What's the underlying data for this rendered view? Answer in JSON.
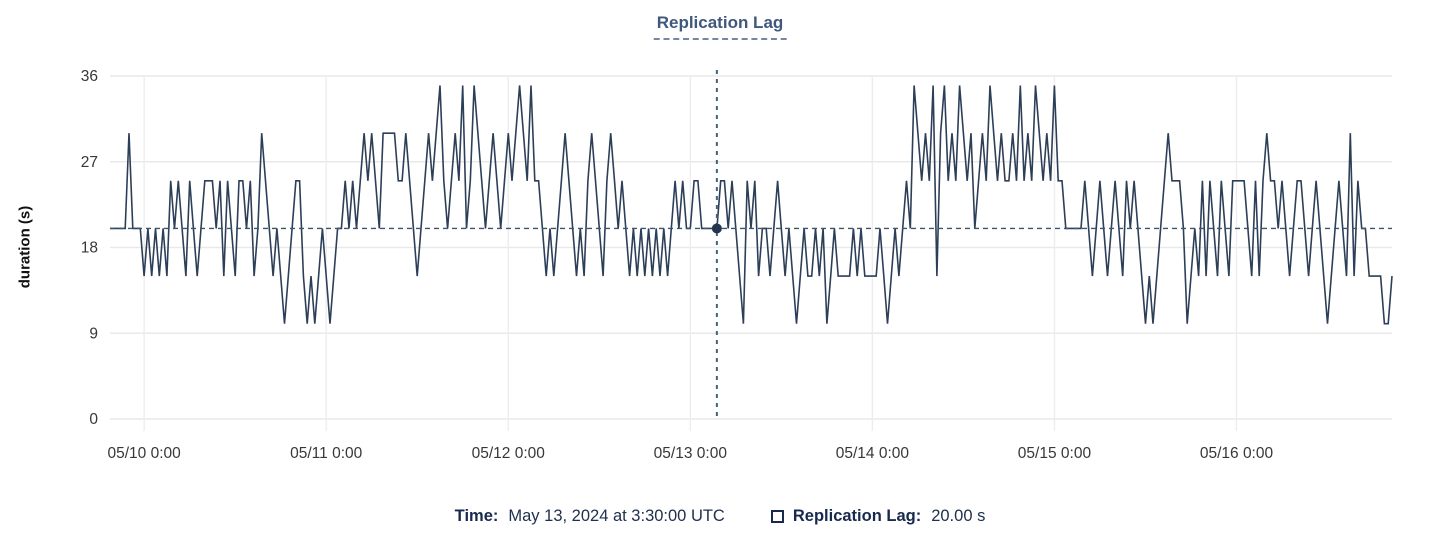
{
  "title": "Replication Lag",
  "colors": {
    "series_line": "#2d3f58",
    "crosshair_vertical": "#41647c",
    "crosshair_horizontal": "#3d566e",
    "crosshair_dot": "#24344f",
    "grid_horizontal": "#e9e9e9",
    "grid_vertical": "#ededed",
    "tick_text": "#373737",
    "title_text": "#40587c",
    "tooltip_label": "#17294d"
  },
  "y_axis": {
    "label": "duration (s)",
    "ticks": [
      0,
      9,
      18,
      27,
      36
    ]
  },
  "x_axis": {
    "tick_labels": [
      "05/10 0:00",
      "05/11 0:00",
      "05/12 0:00",
      "05/13 0:00",
      "05/14 0:00",
      "05/15 0:00",
      "05/16 0:00"
    ],
    "tick_indices": [
      9,
      57,
      105,
      153,
      201,
      249,
      297
    ]
  },
  "crosshair": {
    "point_index": 160,
    "value": 20,
    "time_label": "May 13, 2024 at 3:30:00 UTC"
  },
  "tooltip": {
    "time_label": "Time:",
    "time_value": "May 13, 2024 at 3:30:00 UTC",
    "series_label": "Replication Lag:",
    "series_value": "20.00 s"
  },
  "chart_data": {
    "type": "line",
    "title": "Replication Lag",
    "xlabel": "",
    "ylabel": "duration (s)",
    "ylim": [
      0,
      36
    ],
    "grid": true,
    "x_range": [
      "05/09 19:30",
      "05/16 20:30"
    ],
    "x_step_minutes": 30,
    "x_tick_labels": [
      "05/10 0:00",
      "05/11 0:00",
      "05/12 0:00",
      "05/13 0:00",
      "05/14 0:00",
      "05/15 0:00",
      "05/16 0:00"
    ],
    "series": [
      {
        "name": "Replication Lag",
        "unit": "s",
        "values": [
          20,
          20,
          20,
          20,
          20,
          30,
          20,
          20,
          20,
          15,
          20,
          15,
          20,
          15,
          20,
          15,
          25,
          20,
          25,
          20,
          15,
          25,
          20,
          15,
          20,
          25,
          25,
          25,
          20,
          25,
          15,
          25,
          20,
          15,
          25,
          25,
          20,
          25,
          15,
          20,
          30,
          25,
          20,
          15,
          20,
          15,
          10,
          15,
          20,
          25,
          25,
          15,
          10,
          15,
          10,
          15,
          20,
          15,
          10,
          15,
          20,
          20,
          25,
          20,
          25,
          20,
          25,
          30,
          25,
          30,
          25,
          20,
          30,
          30,
          30,
          30,
          25,
          25,
          30,
          25,
          20,
          15,
          20,
          25,
          30,
          25,
          30,
          35,
          25,
          20,
          25,
          30,
          25,
          35,
          20,
          25,
          35,
          30,
          25,
          20,
          25,
          30,
          25,
          20,
          25,
          30,
          25,
          30,
          35,
          30,
          25,
          35,
          25,
          25,
          20,
          15,
          20,
          15,
          20,
          25,
          30,
          25,
          20,
          15,
          20,
          15,
          25,
          30,
          25,
          20,
          15,
          25,
          30,
          25,
          20,
          25,
          20,
          15,
          20,
          15,
          20,
          15,
          20,
          15,
          20,
          15,
          20,
          15,
          20,
          25,
          20,
          25,
          20,
          20,
          25,
          25,
          20,
          20,
          20,
          20,
          20,
          25,
          25,
          20,
          25,
          20,
          15,
          10,
          25,
          20,
          25,
          15,
          20,
          20,
          15,
          20,
          25,
          20,
          15,
          20,
          15,
          10,
          15,
          20,
          15,
          15,
          20,
          15,
          20,
          10,
          15,
          20,
          15,
          15,
          15,
          15,
          20,
          15,
          20,
          15,
          15,
          15,
          15,
          20,
          15,
          10,
          15,
          20,
          15,
          20,
          25,
          20,
          35,
          30,
          25,
          30,
          25,
          35,
          15,
          30,
          35,
          25,
          30,
          25,
          35,
          30,
          25,
          30,
          20,
          25,
          30,
          25,
          35,
          30,
          25,
          30,
          25,
          25,
          30,
          25,
          35,
          25,
          30,
          25,
          35,
          30,
          25,
          30,
          25,
          35,
          25,
          25,
          20,
          20,
          20,
          20,
          20,
          25,
          20,
          15,
          20,
          25,
          20,
          15,
          20,
          25,
          20,
          15,
          25,
          20,
          25,
          20,
          15,
          10,
          15,
          10,
          15,
          20,
          25,
          30,
          25,
          25,
          25,
          20,
          10,
          15,
          20,
          15,
          25,
          15,
          25,
          20,
          15,
          25,
          20,
          15,
          25,
          25,
          25,
          25,
          20,
          15,
          25,
          15,
          25,
          30,
          25,
          25,
          20,
          25,
          20,
          15,
          20,
          25,
          25,
          20,
          15,
          20,
          25,
          20,
          15,
          10,
          15,
          20,
          25,
          20,
          15,
          30,
          15,
          25,
          20,
          20,
          15,
          15,
          15,
          15,
          10,
          10,
          15
        ]
      }
    ]
  }
}
